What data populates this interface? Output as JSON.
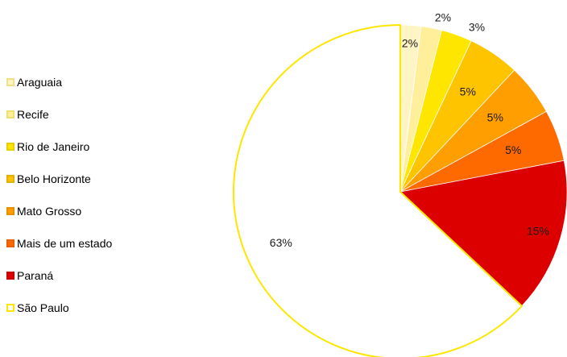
{
  "chart_data": {
    "type": "pie",
    "title": "",
    "start": "12 o'clock",
    "direction": "clockwise",
    "legend_position": "left",
    "slices": [
      {
        "label": "Araguaia",
        "value": 2,
        "display": "2%",
        "color": "#fff4c4",
        "stroke": "#f0e08a"
      },
      {
        "label": "Recife",
        "value": 2,
        "display": "2%",
        "color": "#ffef9a",
        "stroke": "#efdf70"
      },
      {
        "label": "Rio de Janeiro",
        "value": 3,
        "display": "3%",
        "color": "#ffe600",
        "stroke": "#e8d000"
      },
      {
        "label": "Belo Horizonte",
        "value": 5,
        "display": "5%",
        "color": "#ffc400",
        "stroke": "#e6b000"
      },
      {
        "label": "Mato Grosso",
        "value": 5,
        "display": "5%",
        "color": "#ff9e00",
        "stroke": "#e88f00"
      },
      {
        "label": "Mais de um estado",
        "value": 5,
        "display": "5%",
        "color": "#ff6a00",
        "stroke": "#e65f00"
      },
      {
        "label": "Paraná",
        "value": 15,
        "display": "15%",
        "color": "#dd0000",
        "stroke": "#c80000"
      },
      {
        "label": "São Paulo",
        "value": 63,
        "display": "63%",
        "color": "#ffffff",
        "stroke": "#ffe600"
      }
    ]
  }
}
